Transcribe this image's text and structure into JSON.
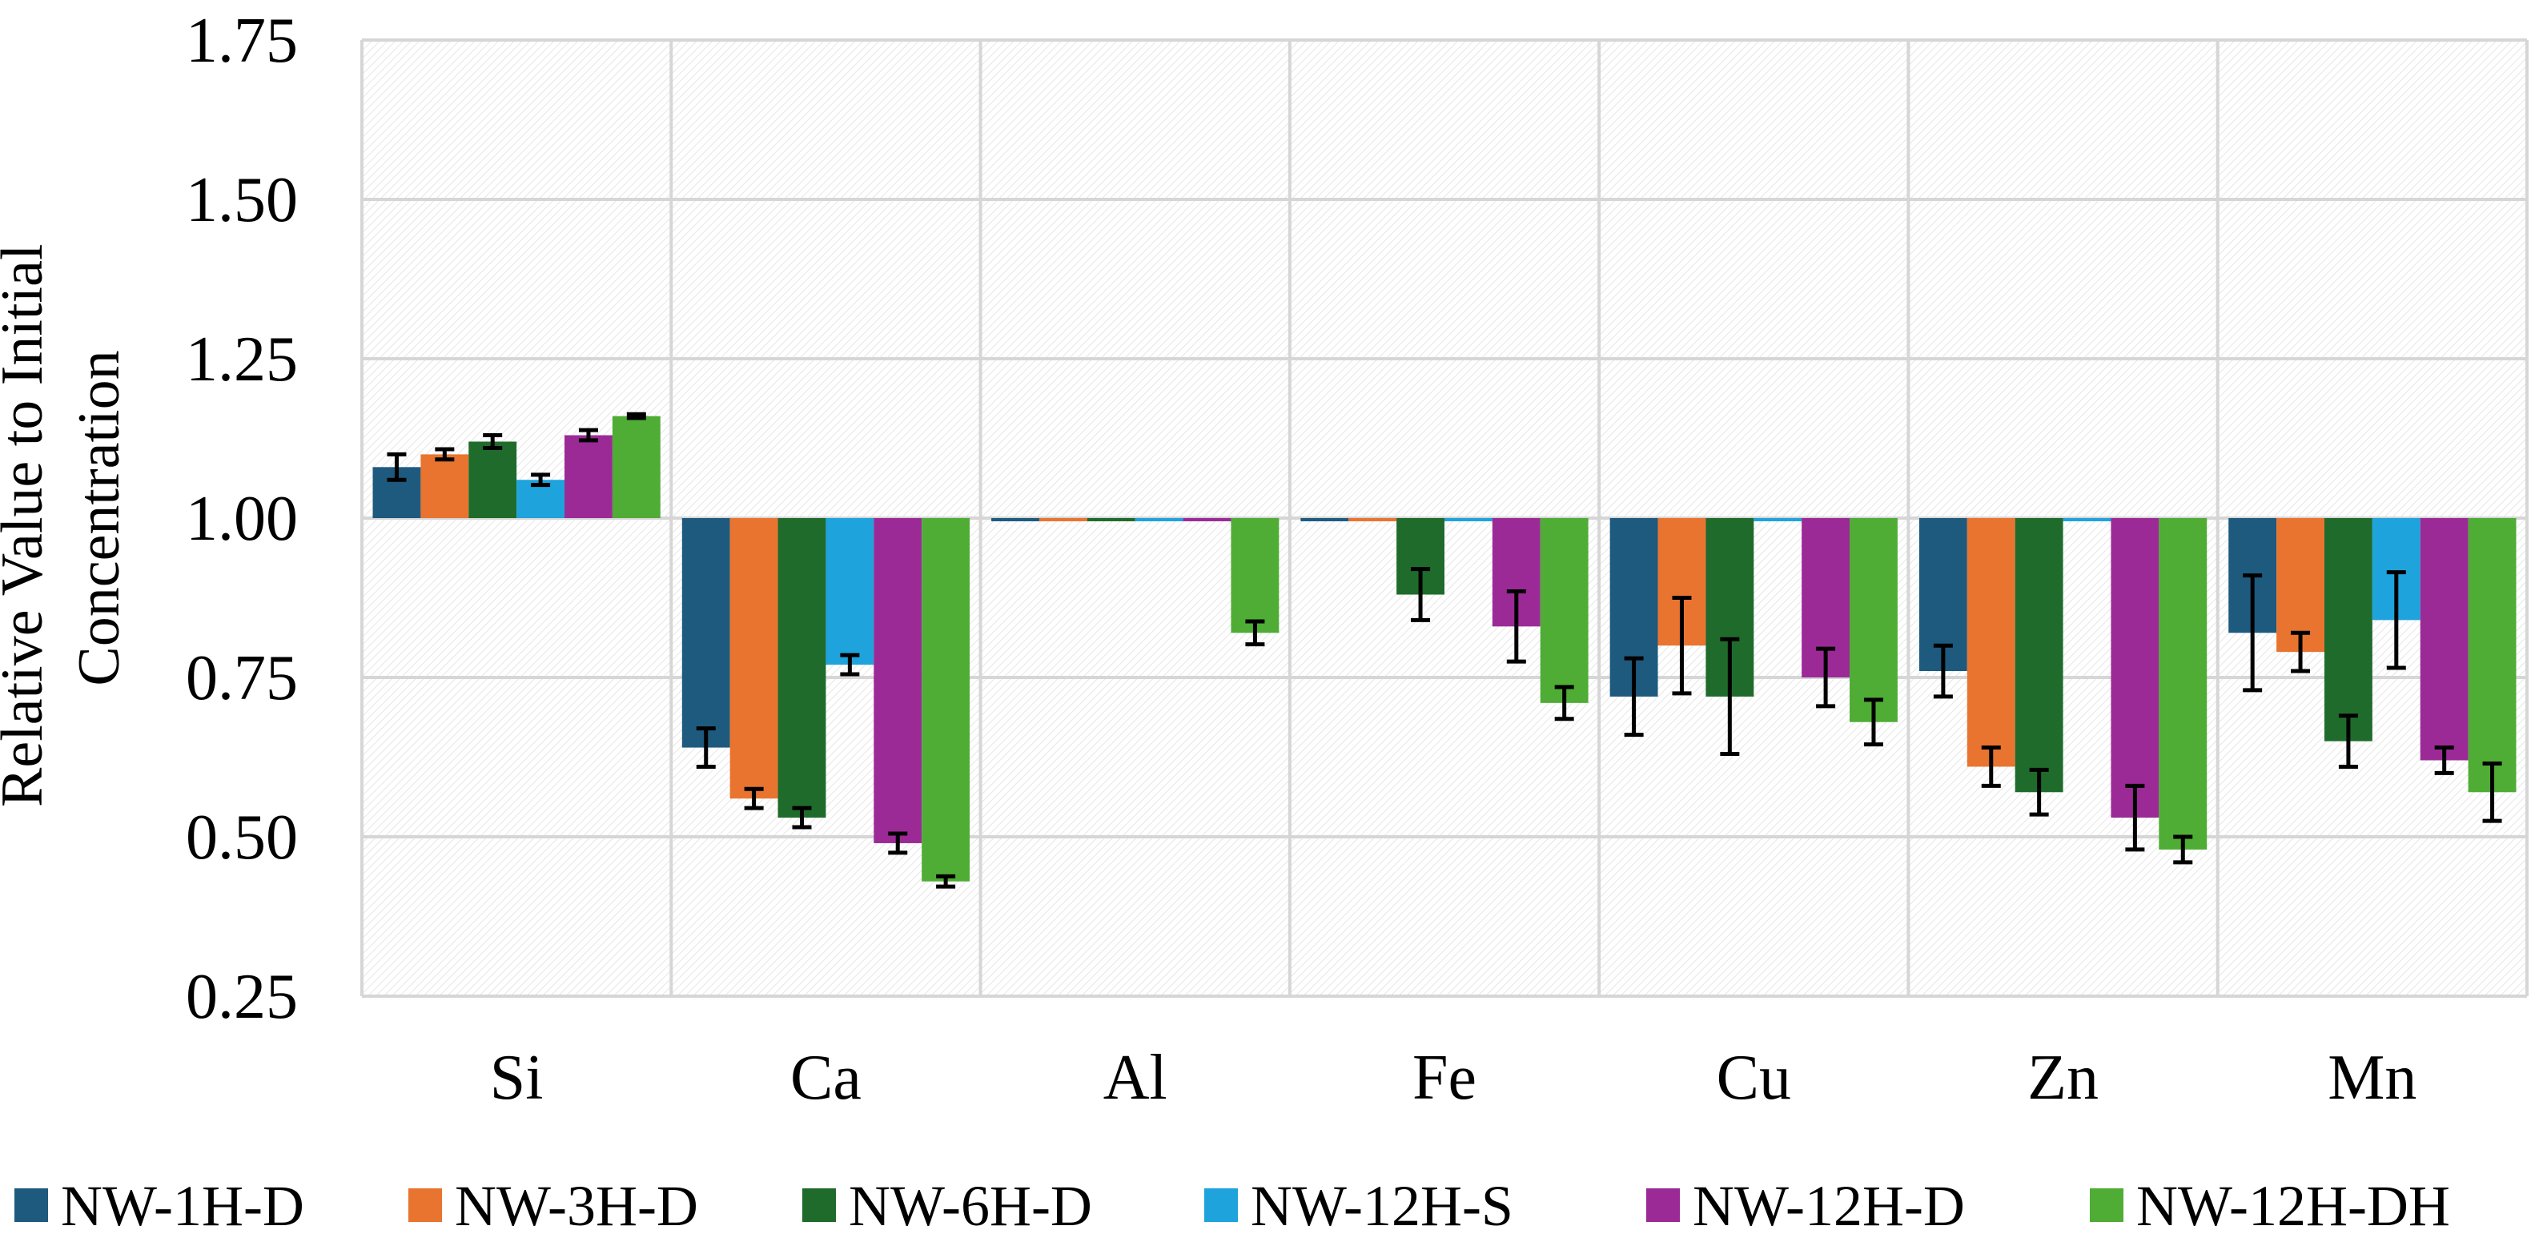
{
  "chart_data": {
    "type": "bar",
    "title": "",
    "xlabel": "",
    "ylabel": [
      "Relative Value to Initial",
      "Concentration"
    ],
    "ylim": [
      0.25,
      1.75
    ],
    "baseline": 1.0,
    "yticks": [
      "0.25",
      "0.50",
      "0.75",
      "1.00",
      "1.25",
      "1.50",
      "1.75"
    ],
    "ytick_values": [
      0.25,
      0.5,
      0.75,
      1.0,
      1.25,
      1.5,
      1.75
    ],
    "grid": true,
    "legend_position": "bottom",
    "categories": [
      "Si",
      "Ca",
      "Al",
      "Fe",
      "Cu",
      "Zn",
      "Mn"
    ],
    "series": [
      {
        "name": "NW-1H-D",
        "color": "#1e5a7e",
        "values": [
          1.08,
          0.64,
          0.995,
          0.995,
          0.72,
          0.76,
          0.82
        ],
        "errors": [
          0.02,
          0.03,
          0.0,
          0.0,
          0.06,
          0.04,
          0.09
        ]
      },
      {
        "name": "NW-3H-D",
        "color": "#e8742f",
        "values": [
          1.1,
          0.56,
          0.995,
          0.995,
          0.8,
          0.61,
          0.79
        ],
        "errors": [
          0.008,
          0.015,
          0.0,
          0.0,
          0.075,
          0.03,
          0.03
        ]
      },
      {
        "name": "NW-6H-D",
        "color": "#1f6b2b",
        "values": [
          1.12,
          0.53,
          0.995,
          0.88,
          0.72,
          0.57,
          0.65
        ],
        "errors": [
          0.01,
          0.015,
          0.0,
          0.04,
          0.09,
          0.035,
          0.04
        ]
      },
      {
        "name": "NW-12H-S",
        "color": "#1ea3dc",
        "values": [
          1.06,
          0.77,
          0.995,
          0.995,
          0.995,
          0.995,
          0.84
        ],
        "errors": [
          0.008,
          0.015,
          0.0,
          0.0,
          0.0,
          0.0,
          0.075
        ]
      },
      {
        "name": "NW-12H-D",
        "color": "#9b2a96",
        "values": [
          1.13,
          0.49,
          0.995,
          0.83,
          0.75,
          0.53,
          0.62
        ],
        "errors": [
          0.008,
          0.015,
          0.0,
          0.055,
          0.045,
          0.05,
          0.02
        ]
      },
      {
        "name": "NW-12H-DH",
        "color": "#4fac35",
        "values": [
          1.16,
          0.43,
          0.82,
          0.71,
          0.68,
          0.48,
          0.57
        ],
        "errors": [
          0.003,
          0.008,
          0.018,
          0.025,
          0.035,
          0.02,
          0.045
        ]
      }
    ]
  }
}
